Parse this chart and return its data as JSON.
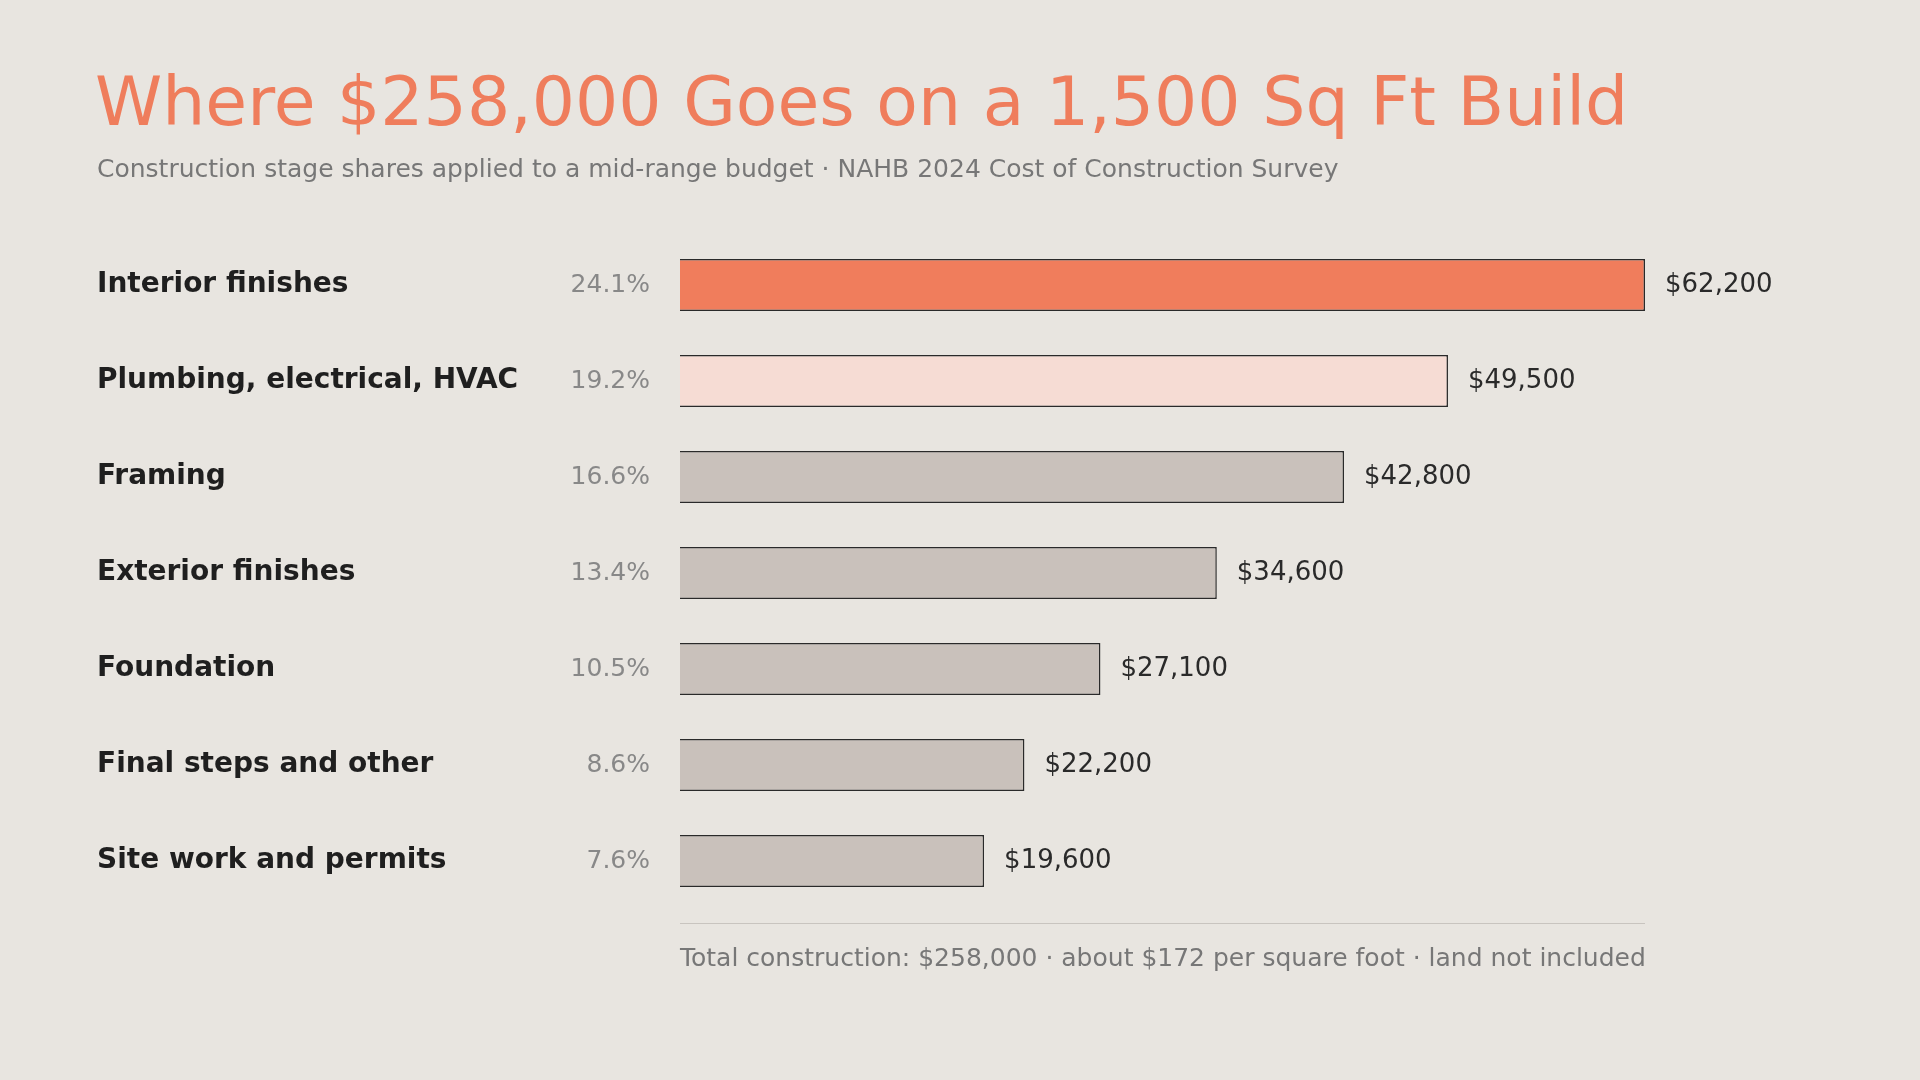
{
  "chart_data": {
    "type": "bar",
    "orientation": "horizontal",
    "title": "Where $258,000 Goes on a 1,500 Sq Ft Build",
    "subtitle": "Construction stage shares applied to a mid-range budget · NAHB 2024 Cost of Construction Survey",
    "categories": [
      "Interior finishes",
      "Plumbing, electrical, HVAC",
      "Framing",
      "Exterior finishes",
      "Foundation",
      "Final steps and other",
      "Site work and permits"
    ],
    "values": [
      62200,
      49500,
      42800,
      34600,
      27100,
      22200,
      19600
    ],
    "colors": [
      "#f07d5c",
      "#f6dcd4",
      "#c9c1bb",
      "#c9c1bb",
      "#c9c1bb",
      "#c9c1bb",
      "#c9c1bb"
    ],
    "value_labels": [
      "$62,200",
      "$49,500",
      "$42,800",
      "$34,600",
      "$27,100",
      "$22,200",
      "$19,600"
    ],
    "annotations": [
      "24.1%",
      "19.2%",
      "16.6%",
      "13.4%",
      "10.5%",
      "8.6%",
      "7.6%",
      "Total construction: $258,000 · about $172 per square foot · land not included"
    ],
    "legend": false
  }
}
